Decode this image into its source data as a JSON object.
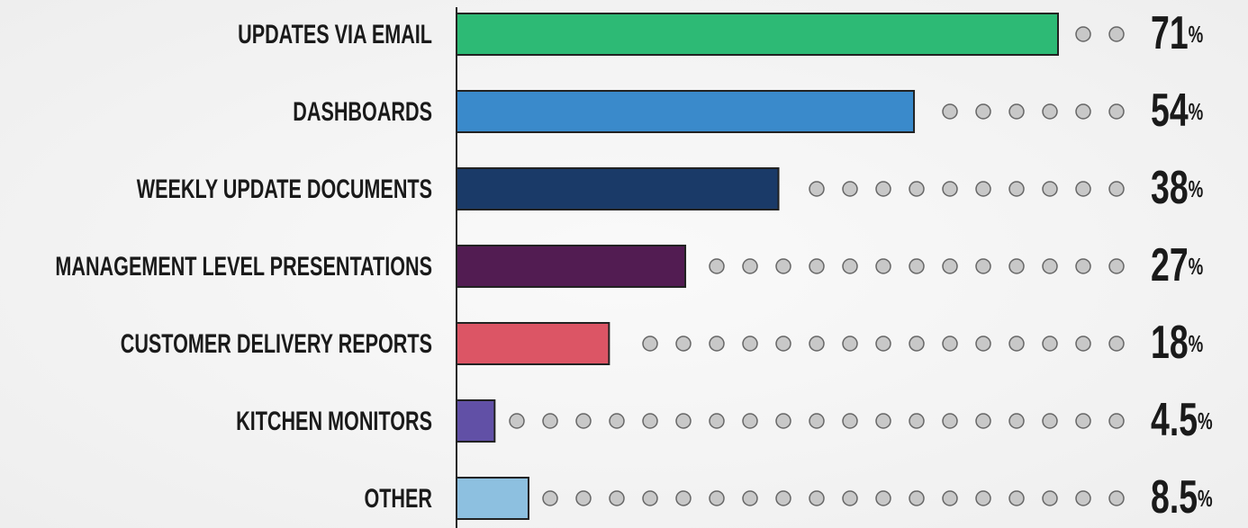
{
  "chart_data": {
    "type": "bar",
    "orientation": "horizontal",
    "categories": [
      "UPDATES VIA EMAIL",
      "DASHBOARDS",
      "WEEKLY UPDATE DOCUMENTS",
      "MANAGEMENT LEVEL PRESENTATIONS",
      "CUSTOMER DELIVERY REPORTS",
      "KITCHEN MONITORS",
      "OTHER"
    ],
    "values": [
      71,
      54,
      38,
      27,
      18,
      4.5,
      8.5
    ],
    "value_labels": [
      "71%",
      "54%",
      "38%",
      "27%",
      "18%",
      "4.5%",
      "8.5%"
    ],
    "colors": [
      "#2dba75",
      "#3a8acb",
      "#1a3a68",
      "#521c52",
      "#dc5565",
      "#6150a6",
      "#8dc0e0"
    ]
  }
}
